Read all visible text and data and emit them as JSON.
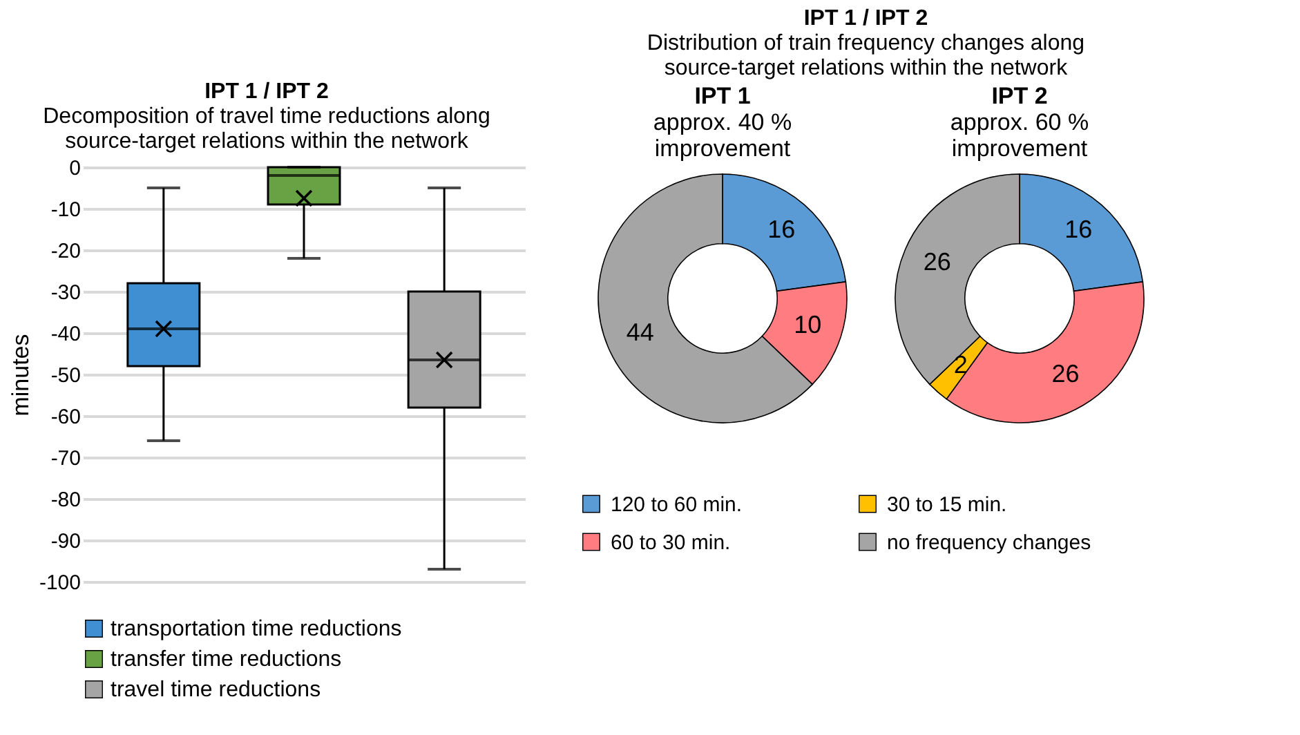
{
  "chart_data": [
    {
      "type": "box",
      "title": "IPT 1 / IPT 2",
      "subtitle": "Decomposition of travel time reductions along\nsource-target relations within the network",
      "ylabel": "minutes",
      "categories": [
        null,
        null,
        null
      ],
      "ylim": [
        -100,
        0
      ],
      "yticks": [
        -100,
        -90,
        -80,
        -70,
        -60,
        -50,
        -40,
        -30,
        -20,
        -10,
        0
      ],
      "grid": "y",
      "tick_labels": "y",
      "legend": "bottom",
      "series": [
        {
          "name": "transportation time reductions",
          "color": "#3f8fd2",
          "boxes": [
            {
              "low": -66,
              "q1": -48,
              "median": -39,
              "q3": -28,
              "high": -5,
              "mean": -39
            },
            null,
            null
          ]
        },
        {
          "name": "transfer time reductions",
          "color": "#69a245",
          "boxes": [
            null,
            {
              "low": -22,
              "q1": -9,
              "median": -2,
              "q3": 0,
              "high": 0,
              "mean": -7.5
            },
            null
          ]
        },
        {
          "name": "travel time reductions",
          "color": "#a5a5a5",
          "boxes": [
            null,
            null,
            {
              "low": -97,
              "q1": -58,
              "median": -46.5,
              "q3": -30,
              "high": -5,
              "mean": -46.5
            }
          ]
        }
      ]
    },
    {
      "type": "other",
      "title": "IPT 1 / IPT 2",
      "subtitle": "Distribution of train frequency changes along\nsource-target relations within the network"
    },
    {
      "type": "donut",
      "title": "IPT 1",
      "subtitle": "approx. 40 %\nimprovement",
      "categories": [
        null,
        null,
        null
      ],
      "values": [
        16,
        10,
        44
      ],
      "colors": [
        "#5b9bd5",
        "#ff7c80",
        "#a5a5a5"
      ],
      "data_labels": true
    },
    {
      "type": "donut",
      "title": "IPT 2",
      "subtitle": "approx. 60 %\nimprovement",
      "categories": [
        "120 to 60 min.",
        "60 to 30 min.",
        "30 to 15 min.",
        "no frequency changes"
      ],
      "values": [
        16,
        26,
        2,
        26
      ],
      "colors": [
        "#5b9bd5",
        "#ff7c80",
        "#ffc000",
        "#a5a5a5"
      ],
      "data_labels": true,
      "legend": "bottom"
    }
  ]
}
